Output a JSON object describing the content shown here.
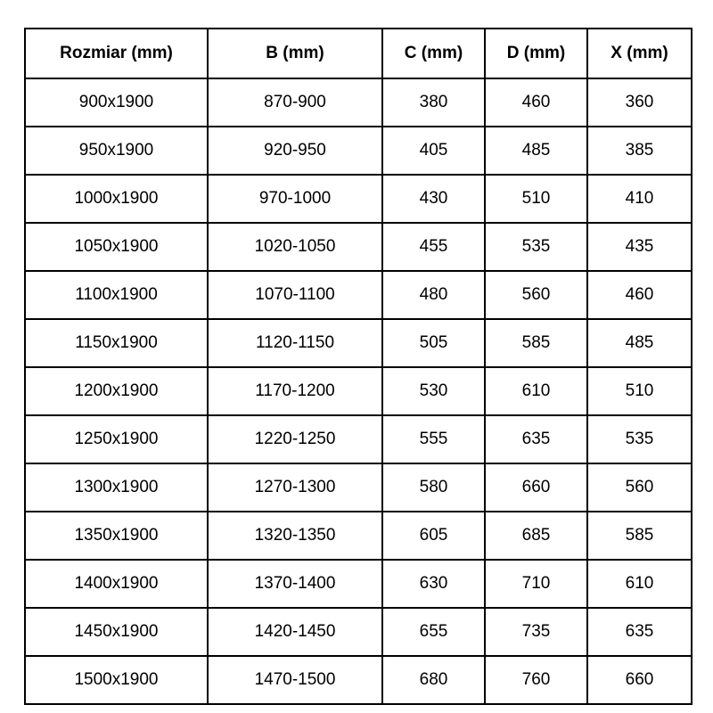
{
  "chart_data": {
    "type": "table",
    "columns": [
      "Rozmiar (mm)",
      "B (mm)",
      "C (mm)",
      "D (mm)",
      "X (mm)"
    ],
    "rows": [
      [
        "900x1900",
        "870-900",
        "380",
        "460",
        "360"
      ],
      [
        "950x1900",
        "920-950",
        "405",
        "485",
        "385"
      ],
      [
        "1000x1900",
        "970-1000",
        "430",
        "510",
        "410"
      ],
      [
        "1050x1900",
        "1020-1050",
        "455",
        "535",
        "435"
      ],
      [
        "1100x1900",
        "1070-1100",
        "480",
        "560",
        "460"
      ],
      [
        "1150x1900",
        "1120-1150",
        "505",
        "585",
        "485"
      ],
      [
        "1200x1900",
        "1170-1200",
        "530",
        "610",
        "510"
      ],
      [
        "1250x1900",
        "1220-1250",
        "555",
        "635",
        "535"
      ],
      [
        "1300x1900",
        "1270-1300",
        "580",
        "660",
        "560"
      ],
      [
        "1350x1900",
        "1320-1350",
        "605",
        "685",
        "585"
      ],
      [
        "1400x1900",
        "1370-1400",
        "630",
        "710",
        "610"
      ],
      [
        "1450x1900",
        "1420-1450",
        "655",
        "735",
        "635"
      ],
      [
        "1500x1900",
        "1470-1500",
        "680",
        "760",
        "660"
      ]
    ],
    "layout": {
      "grid": "on",
      "header_style": "bold",
      "cell_alignment": "center"
    }
  },
  "colors": {
    "border": "#000000",
    "text": "#000000",
    "background": "#ffffff"
  }
}
